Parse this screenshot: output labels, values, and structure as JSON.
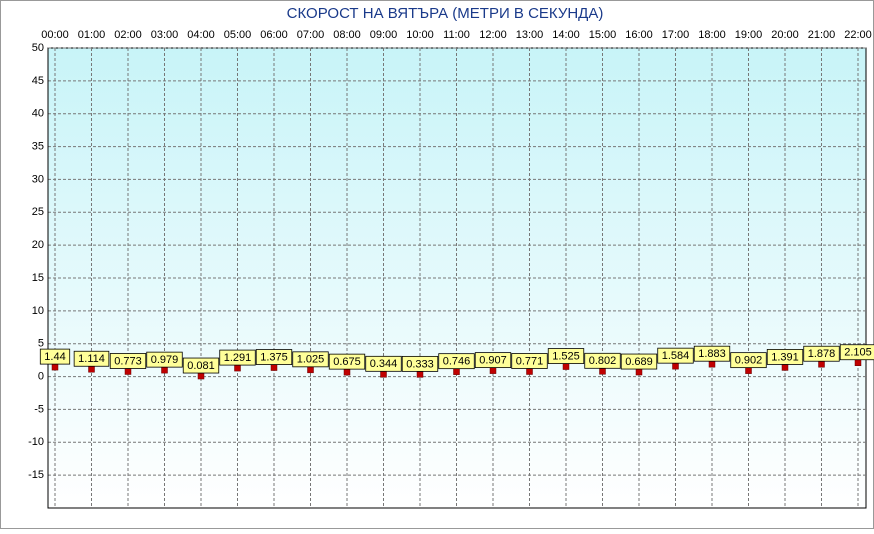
{
  "chart_data": {
    "type": "scatter",
    "title": "СКОРОСТ НА ВЯТЪРА (МЕТРИ В СЕКУНДА)",
    "categories": [
      "00:00",
      "01:00",
      "02:00",
      "03:00",
      "04:00",
      "05:00",
      "06:00",
      "07:00",
      "08:00",
      "09:00",
      "10:00",
      "11:00",
      "12:00",
      "13:00",
      "14:00",
      "15:00",
      "16:00",
      "17:00",
      "18:00",
      "19:00",
      "20:00",
      "21:00",
      "22:00"
    ],
    "values": [
      1.44,
      1.114,
      0.773,
      0.979,
      0.081,
      1.291,
      1.375,
      1.025,
      0.675,
      0.344,
      0.333,
      0.746,
      0.907,
      0.771,
      1.525,
      0.802,
      0.689,
      1.584,
      1.883,
      0.902,
      1.391,
      1.878,
      2.105
    ],
    "color": "#c00000",
    "ylim": [
      -20,
      50
    ],
    "yticks": [
      -15,
      -10,
      -5,
      0,
      5,
      10,
      15,
      20,
      25,
      30,
      35,
      40,
      45,
      50
    ],
    "grid": true
  }
}
